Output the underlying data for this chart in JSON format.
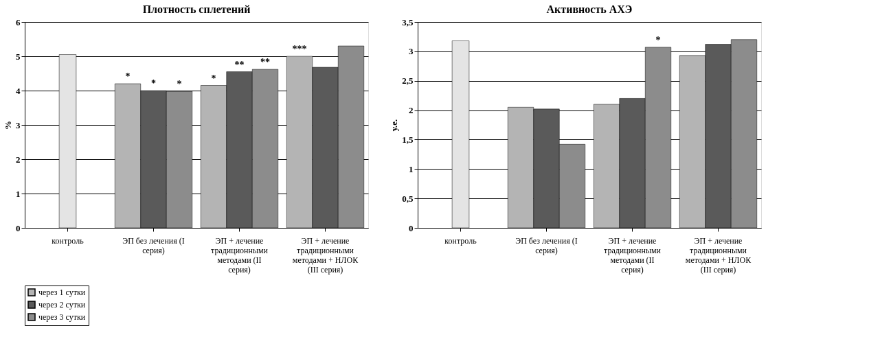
{
  "chart_data": [
    {
      "type": "bar",
      "title": "Плотность сплетений",
      "ylabel": "%",
      "categories": [
        "контроль",
        "ЭП без лечения (I серия)",
        "ЭП + лечение традиционными методами (II серия)",
        "ЭП + лечение традиционными методами + НЛОК (III серия)"
      ],
      "series": [
        {
          "color": "#e4e4e4",
          "values": [
            5.05,
            null,
            null,
            null
          ]
        },
        {
          "name": "через 1 сутки",
          "color": "#b4b4b4",
          "values": [
            null,
            4.2,
            4.15,
            5.0
          ],
          "value_labels": [
            null,
            "*",
            "*",
            "***"
          ]
        },
        {
          "name": "через 2 сутки",
          "color": "#5a5a5a",
          "values": [
            null,
            4.0,
            4.55,
            4.68
          ],
          "value_labels": [
            null,
            "*",
            "**",
            null
          ]
        },
        {
          "name": "через 3 сутки",
          "color": "#8c8c8c",
          "values": [
            null,
            3.98,
            4.62,
            5.3
          ],
          "value_labels": [
            null,
            "*",
            "**",
            null
          ]
        }
      ],
      "ylim": [
        0,
        6
      ],
      "yticks": [
        0,
        1,
        2,
        3,
        4,
        5,
        6
      ],
      "grid": "y",
      "legend": "bottom left"
    },
    {
      "type": "bar",
      "title": "Активность АХЭ",
      "ylabel": "у.е.",
      "categories": [
        "контроль",
        "ЭП без лечения (I серия)",
        "ЭП + лечение традиционными методами (II серия)",
        "ЭП + лечение традиционными методами + НЛОК (III серия)"
      ],
      "series": [
        {
          "color": "#e4e4e4",
          "values": [
            3.18,
            null,
            null,
            null
          ]
        },
        {
          "name": "через 1 сутки",
          "color": "#b4b4b4",
          "values": [
            null,
            2.05,
            2.1,
            2.93
          ]
        },
        {
          "name": "через 2 сутки",
          "color": "#5a5a5a",
          "values": [
            null,
            2.02,
            2.2,
            3.12
          ]
        },
        {
          "name": "через 3 сутки",
          "color": "#8c8c8c",
          "values": [
            null,
            1.42,
            3.07,
            3.2
          ],
          "value_labels": [
            null,
            null,
            "*",
            null
          ]
        }
      ],
      "ylim": [
        0,
        3.5
      ],
      "yticks": [
        0,
        {
          "value": 0.5,
          "label": "0,5"
        },
        1,
        {
          "value": 1.5,
          "label": "1,5"
        },
        2,
        {
          "value": 2.5,
          "label": "2,5"
        },
        3,
        {
          "value": 3.5,
          "label": "3,5"
        }
      ],
      "grid": "y",
      "legend": false
    }
  ]
}
